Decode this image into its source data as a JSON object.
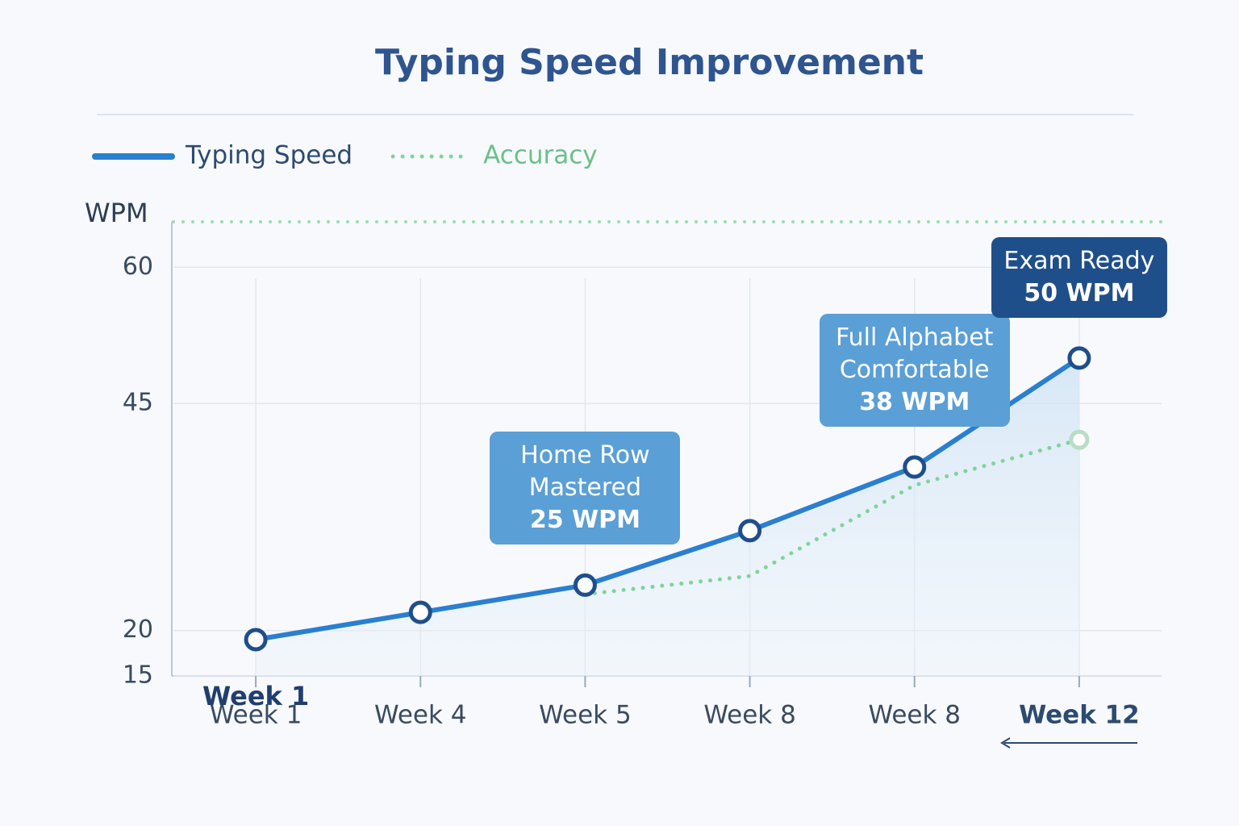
{
  "chart_data": {
    "type": "line",
    "title": "Typing Speed Improvement",
    "y_label": "WPM",
    "start_label": "Week 1",
    "categories": [
      "Week 1",
      "Week 4",
      "Week 5",
      "Week 8",
      "Week 8",
      "Week 12"
    ],
    "series": [
      {
        "name": "Typing Speed",
        "color": "#2a7fd0",
        "values": [
          19,
          22,
          25,
          31,
          38,
          50
        ],
        "value_labels": [
          null,
          null,
          "25 WPM",
          null,
          "38 WPM",
          "50 WPM"
        ],
        "annotations": [
          null,
          null,
          "Home Row Mastered",
          null,
          "Full Alphabet Comfortable",
          "Exam Ready"
        ]
      },
      {
        "name": "Accuracy",
        "color": "#7fd39a",
        "values": [
          null,
          null,
          24,
          26,
          36,
          41
        ]
      }
    ],
    "ylim": [
      15,
      65
    ],
    "yticks": [
      15,
      20,
      45,
      60
    ],
    "grid": true
  }
}
